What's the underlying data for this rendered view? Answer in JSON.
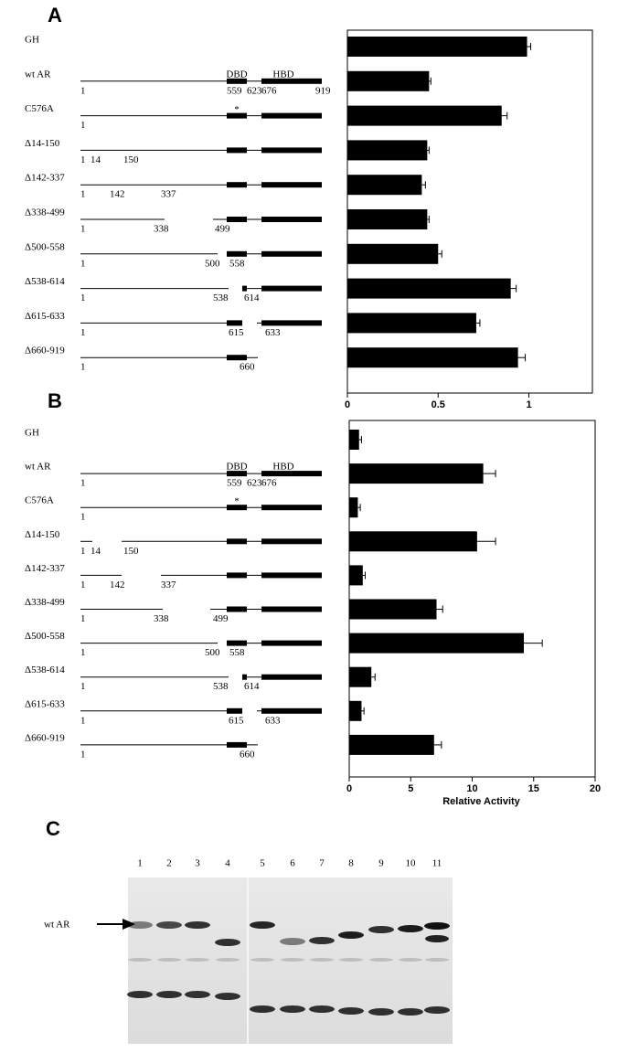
{
  "chart_data": [
    {
      "type": "bar",
      "orientation": "horizontal",
      "panel": "A",
      "color": "#000000",
      "categories": [
        "GH",
        "wt AR",
        "C576A",
        "Δ14-150",
        "Δ142-337",
        "Δ338-499",
        "Δ500-558",
        "Δ538-614",
        "Δ615-633",
        "Δ660-919"
      ],
      "values": [
        0.99,
        0.45,
        0.85,
        0.44,
        0.41,
        0.44,
        0.5,
        0.9,
        0.71,
        0.94
      ],
      "errors": [
        0.02,
        0.01,
        0.03,
        0.01,
        0.02,
        0.01,
        0.02,
        0.03,
        0.02,
        0.04
      ],
      "xlim": [
        0,
        1.35
      ],
      "xticks": [
        0,
        0.5,
        1
      ],
      "domain_labels": [
        "DBD",
        "HBD"
      ],
      "mutation_mark": "*",
      "diagram_labels": [
        [],
        [
          "1",
          "559",
          "623",
          "676",
          "919"
        ],
        [
          "1"
        ],
        [
          "1",
          "14",
          "150"
        ],
        [
          "1",
          "142",
          "337"
        ],
        [
          "1",
          "338",
          "499"
        ],
        [
          "1",
          "500",
          "558"
        ],
        [
          "1",
          "538",
          "614"
        ],
        [
          "1",
          "615",
          "633"
        ],
        [
          "1",
          "660"
        ]
      ]
    },
    {
      "type": "bar",
      "orientation": "horizontal",
      "panel": "B",
      "color": "#000000",
      "categories": [
        "GH",
        "wt AR",
        "C576A",
        "Δ14-150",
        "Δ142-337",
        "Δ338-499",
        "Δ500-558",
        "Δ538-614",
        "Δ615-633",
        "Δ660-919"
      ],
      "values": [
        0.8,
        10.9,
        0.7,
        10.4,
        1.1,
        7.1,
        14.2,
        1.8,
        1.0,
        6.9
      ],
      "errors": [
        0.2,
        1.0,
        0.2,
        1.5,
        0.2,
        0.5,
        1.5,
        0.3,
        0.2,
        0.6
      ],
      "xlim": [
        0,
        20
      ],
      "xticks": [
        0,
        5,
        10,
        15,
        20
      ],
      "xlabel": "Relative Activity",
      "domain_labels": [
        "DBD",
        "HBD"
      ],
      "mutation_mark": "*",
      "diagram_labels": [
        [],
        [
          "1",
          "559",
          "623",
          "676"
        ],
        [
          "1"
        ],
        [
          "1",
          "14",
          "150"
        ],
        [
          "1",
          "142",
          "337"
        ],
        [
          "1",
          "338",
          "499"
        ],
        [
          "1",
          "500",
          "558"
        ],
        [
          "1",
          "538",
          "614"
        ],
        [
          "1",
          "615",
          "633"
        ],
        [
          "1",
          "660"
        ]
      ]
    }
  ],
  "panel_c": {
    "panel": "C",
    "lanes": [
      "1",
      "2",
      "3",
      "4",
      "5",
      "6",
      "7",
      "8",
      "9",
      "10",
      "11"
    ],
    "arrow_label": "wt AR"
  }
}
